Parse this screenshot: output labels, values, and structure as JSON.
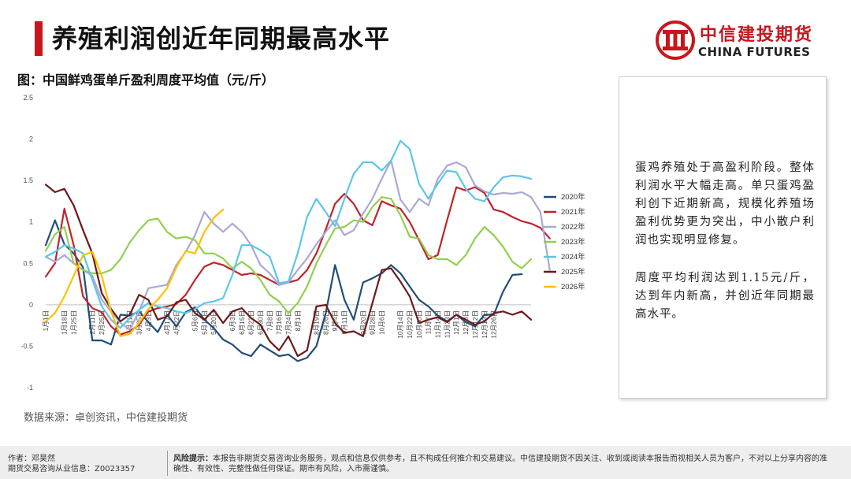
{
  "header": {
    "title": "养殖利润创近年同期最高水平",
    "logo_cn": "中信建投期货",
    "logo_en": "CHINA FUTURES"
  },
  "chart_title": "图：中国鲜鸡蛋单斤盈利周度平均值（元/斤）",
  "source": "数据来源：卓创资讯，中信建投期货",
  "side": {
    "p1": "蛋鸡养殖处于高盈利阶段。整体利润水平大幅走高。单只蛋鸡盈利创下近期新高，规模化养殖场盈利优势更为突出，中小散户利润也实现明显修复。",
    "p2": "周度平均利润达到1.15元/斤，达到年内新高，并创近年同期最高水平。"
  },
  "footer": {
    "author": "作者：邓昊然",
    "license": "期货交易咨询从业信息：Z0023357",
    "risk_label": "风险提示：",
    "risk_text": "本报告非期货交易咨询业务服务，观点和信息仅供参考，且不构成任何推介和交易建议。中信建投期货不因关注、收到或阅读本报告而视相关人员为客户，不对以上分享内容的准确性、有效性、完整性做任何保证。期市有风险，入市需谨慎。"
  },
  "colors": {
    "accent": "#c8161d",
    "2020年": "#1f4e79",
    "2021年": "#c0232b",
    "2022年": "#a9a9d6",
    "2023年": "#92d050",
    "2024年": "#5cc6e8",
    "2025年": "#6b1a1a",
    "2026年": "#ffc000"
  },
  "chart_data": {
    "type": "line",
    "title": "图：中国鲜鸡蛋单斤盈利周度平均值（元/斤）",
    "xlabel": "",
    "ylabel": "",
    "ylim": [
      -1,
      2.5
    ],
    "yticks": [
      "-1",
      "-0.5",
      "0",
      "0.5",
      "1",
      "1.5",
      "2",
      "2.5"
    ],
    "ytick_values": [
      -1,
      -0.5,
      0,
      0.5,
      1,
      1.5,
      2,
      2.5
    ],
    "x_tick_labels": [
      "1月1日",
      "1月18日",
      "1月25日",
      "2月11日",
      "2月25日",
      "3月11日",
      "3月25日",
      "4月3日",
      "4月17日",
      "4月22日",
      "5月6日",
      "5月12日",
      "5月20日",
      "6月3日",
      "6月15日",
      "6月22日",
      "6月30日",
      "7月8日",
      "7月16日",
      "7月24日",
      "8月1日",
      "8月19日",
      "8月26日",
      "9月4日",
      "9月11日",
      "9月20日",
      "9月28日",
      "10月6日",
      "10月14日",
      "10月22日",
      "10月30日",
      "11月7日",
      "11月14日",
      "11月23日",
      "12月1日",
      "12月8日",
      "12月12日",
      "12月19日",
      "12月26日"
    ],
    "x_tick_index": [
      0,
      2,
      3,
      5,
      6,
      9,
      10,
      11,
      13,
      14,
      16,
      17,
      18,
      20,
      21,
      22,
      23,
      24,
      25,
      26,
      27,
      29,
      30,
      31,
      32,
      34,
      35,
      36,
      38,
      39,
      40,
      41,
      42,
      43,
      44,
      45,
      46,
      47,
      48
    ],
    "grid": false,
    "legend_position": "right",
    "series": [
      {
        "name": "2020年",
        "values": [
          0.72,
          1.02,
          0.73,
          0.62,
          0.45,
          -0.43,
          -0.43,
          -0.48,
          -0.12,
          -0.13,
          -0.08,
          -0.21,
          -0.33,
          -0.12,
          -0.26,
          -0.09,
          -0.03,
          -0.18,
          -0.28,
          -0.42,
          -0.48,
          -0.58,
          -0.62,
          -0.48,
          -0.55,
          -0.62,
          -0.6,
          -0.68,
          -0.64,
          -0.5,
          -0.1,
          0.48,
          0.06,
          -0.18,
          0.27,
          0.32,
          0.38,
          0.48,
          0.38,
          0.22,
          0.06,
          -0.02,
          -0.13,
          -0.2,
          -0.12,
          -0.21,
          -0.26,
          -0.12,
          -0.12,
          0.16,
          0.36,
          0.37
        ]
      },
      {
        "name": "2021年",
        "values": [
          0.34,
          0.5,
          1.16,
          0.72,
          0.1,
          -0.04,
          -0.09,
          -0.26,
          -0.36,
          -0.32,
          -0.24,
          -0.08,
          -0.04,
          -0.02,
          0.01,
          0.12,
          0.3,
          0.46,
          0.51,
          0.48,
          0.42,
          0.36,
          0.38,
          0.36,
          0.3,
          0.24,
          0.27,
          0.3,
          0.42,
          0.62,
          0.91,
          1.22,
          1.34,
          1.22,
          1.02,
          0.96,
          1.25,
          1.2,
          1.16,
          1.0,
          0.78,
          0.55,
          0.6,
          1.02,
          1.42,
          1.38,
          1.42,
          1.35,
          1.15,
          1.12,
          1.06,
          1.01,
          0.98,
          0.93,
          0.8
        ]
      },
      {
        "name": "2022年",
        "values": [
          0.58,
          0.52,
          0.6,
          0.5,
          0.42,
          0.35,
          0.06,
          -0.08,
          -0.22,
          -0.3,
          -0.08,
          0.2,
          0.22,
          0.24,
          0.48,
          0.64,
          0.84,
          1.12,
          0.98,
          0.88,
          0.98,
          0.88,
          0.72,
          0.48,
          0.38,
          0.24,
          0.27,
          0.42,
          0.56,
          0.73,
          0.88,
          1.02,
          0.84,
          0.9,
          1.1,
          1.28,
          1.52,
          1.74,
          1.27,
          1.12,
          1.28,
          1.2,
          1.52,
          1.68,
          1.72,
          1.66,
          1.44,
          1.37,
          1.33,
          1.35,
          1.34,
          1.36,
          1.3,
          1.12,
          0.42
        ]
      },
      {
        "name": "2023年",
        "values": [
          0.65,
          0.85,
          0.94,
          0.5,
          0.42,
          0.38,
          0.38,
          0.42,
          0.55,
          0.75,
          0.9,
          1.02,
          1.04,
          0.88,
          0.8,
          0.82,
          0.78,
          0.62,
          0.62,
          0.56,
          0.44,
          0.52,
          0.44,
          0.3,
          0.12,
          0.04,
          -0.1,
          0.02,
          0.22,
          0.5,
          0.72,
          0.92,
          0.94,
          1.02,
          1.0,
          1.18,
          1.3,
          1.28,
          1.08,
          0.82,
          0.8,
          0.6,
          0.55,
          0.55,
          0.48,
          0.6,
          0.8,
          0.94,
          0.84,
          0.7,
          0.52,
          0.44,
          0.55
        ]
      },
      {
        "name": "2024年",
        "values": [
          0.58,
          0.64,
          0.72,
          0.68,
          0.62,
          0.3,
          -0.02,
          -0.18,
          -0.28,
          -0.16,
          -0.06,
          0.02,
          -0.02,
          -0.04,
          -0.08,
          -0.1,
          -0.05,
          0.02,
          0.04,
          0.08,
          0.36,
          0.72,
          0.72,
          0.66,
          0.58,
          0.26,
          0.28,
          0.62,
          1.06,
          1.28,
          1.12,
          0.95,
          1.28,
          1.58,
          1.72,
          1.72,
          1.62,
          1.74,
          1.98,
          1.88,
          1.46,
          1.28,
          1.46,
          1.62,
          1.6,
          1.4,
          1.28,
          1.25,
          1.42,
          1.54,
          1.56,
          1.55,
          1.52
        ]
      },
      {
        "name": "2025年",
        "values": [
          1.45,
          1.36,
          1.4,
          1.2,
          0.9,
          0.62,
          0.14,
          -0.05,
          -0.2,
          -0.12,
          0.12,
          0.06,
          -0.18,
          -0.14,
          0.03,
          0.06,
          -0.1,
          -0.18,
          -0.06,
          -0.22,
          -0.08,
          -0.04,
          -0.16,
          -0.24,
          -0.44,
          -0.55,
          -0.38,
          -0.62,
          -0.55,
          -0.02,
          0.0,
          -0.22,
          -0.34,
          -0.32,
          -0.38,
          0.02,
          0.42,
          0.44,
          0.28,
          0.1,
          -0.22,
          -0.18,
          -0.15,
          -0.21,
          -0.12,
          -0.18,
          -0.24,
          -0.2,
          -0.1,
          -0.08,
          -0.12,
          -0.08,
          -0.18
        ]
      },
      {
        "name": "2026年",
        "values": [
          -0.2,
          -0.1,
          0.1,
          0.35,
          0.6,
          0.64,
          0.35,
          -0.08,
          -0.38,
          -0.35,
          -0.22,
          -0.05,
          0.06,
          0.2,
          0.45,
          0.65,
          0.62,
          0.88,
          1.05,
          1.15
        ]
      }
    ]
  }
}
